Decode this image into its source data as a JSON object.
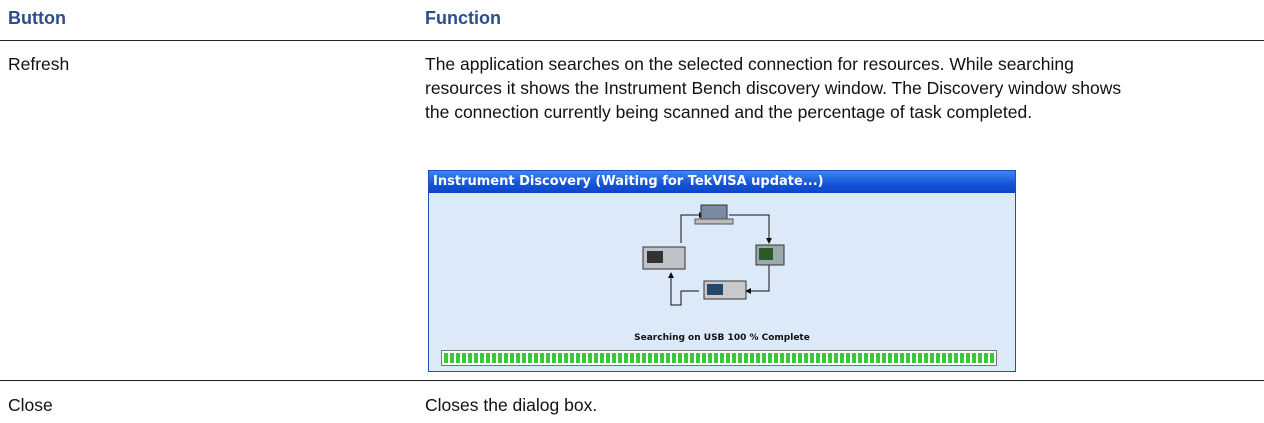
{
  "table": {
    "headers": [
      "Button",
      "Function"
    ],
    "rows": [
      [
        "Refresh",
        "The application searches on the selected connection for resources. While searching resources it shows the Instrument Bench discovery window. The Discovery window shows the connection currently being scanned and the percentage of task completed."
      ],
      [
        "Close",
        "Closes the dialog box."
      ]
    ]
  },
  "dialog": {
    "title": "Instrument Discovery (Waiting for TekVISA update...)",
    "status": "Searching on USB 100 % Complete"
  }
}
